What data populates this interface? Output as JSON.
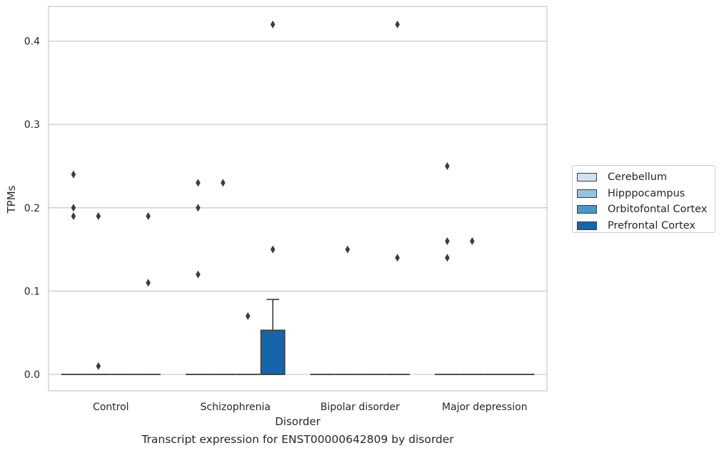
{
  "caption": "Transcript expression for ENST00000642809 by disorder",
  "chart_data": {
    "type": "box",
    "xlabel": "Disorder",
    "ylabel": "TPMs",
    "ylim": [
      -0.02,
      0.44
    ],
    "yticks": [
      0.0,
      0.1,
      0.2,
      0.3,
      0.4
    ],
    "ytick_labels": [
      "0.0",
      "0.1",
      "0.2",
      "0.3",
      "0.4"
    ],
    "grid": "horizontal",
    "legend_position": "right",
    "categories": [
      "Control",
      "Schizophrenia",
      "Bipolar disorder",
      "Major depression"
    ],
    "series": [
      {
        "name": "Cerebellum",
        "color": "#d0e1f2",
        "boxes": [
          {
            "q1": 0,
            "median": 0,
            "q3": 0,
            "whisker_low": 0,
            "whisker_high": 0,
            "outliers": [
              0.24,
              0.2,
              0.19
            ]
          },
          {
            "q1": 0,
            "median": 0,
            "q3": 0,
            "whisker_low": 0,
            "whisker_high": 0,
            "outliers": [
              0.23,
              0.2,
              0.12
            ]
          },
          {
            "q1": 0,
            "median": 0,
            "q3": 0,
            "whisker_low": 0,
            "whisker_high": 0,
            "outliers": []
          },
          {
            "q1": 0,
            "median": 0,
            "q3": 0,
            "whisker_low": 0,
            "whisker_high": 0,
            "outliers": [
              0.25,
              0.16,
              0.14
            ]
          }
        ]
      },
      {
        "name": "Hipppocampus",
        "color": "#94c4df",
        "boxes": [
          {
            "q1": 0,
            "median": 0,
            "q3": 0,
            "whisker_low": 0,
            "whisker_high": 0,
            "outliers": [
              0.19,
              0.01
            ]
          },
          {
            "q1": 0,
            "median": 0,
            "q3": 0,
            "whisker_low": 0,
            "whisker_high": 0,
            "outliers": [
              0.23
            ]
          },
          {
            "q1": 0,
            "median": 0,
            "q3": 0,
            "whisker_low": 0,
            "whisker_high": 0,
            "outliers": [
              0.15
            ]
          },
          {
            "q1": 0,
            "median": 0,
            "q3": 0,
            "whisker_low": 0,
            "whisker_high": 0,
            "outliers": [
              0.16
            ]
          }
        ]
      },
      {
        "name": "Orbitofontal Cortex",
        "color": "#4a98c9",
        "boxes": [
          {
            "q1": 0,
            "median": 0,
            "q3": 0,
            "whisker_low": 0,
            "whisker_high": 0,
            "outliers": []
          },
          {
            "q1": 0,
            "median": 0,
            "q3": 0,
            "whisker_low": 0,
            "whisker_high": 0,
            "outliers": [
              0.07
            ]
          },
          {
            "q1": 0,
            "median": 0,
            "q3": 0,
            "whisker_low": 0,
            "whisker_high": 0,
            "outliers": []
          },
          {
            "q1": 0,
            "median": 0,
            "q3": 0,
            "whisker_low": 0,
            "whisker_high": 0,
            "outliers": []
          }
        ]
      },
      {
        "name": "Prefrontal Cortex",
        "color": "#1764ab",
        "boxes": [
          {
            "q1": 0,
            "median": 0,
            "q3": 0,
            "whisker_low": 0,
            "whisker_high": 0,
            "outliers": [
              0.19,
              0.11
            ]
          },
          {
            "q1": 0,
            "median": 0,
            "q3": 0.053,
            "whisker_low": 0,
            "whisker_high": 0.09,
            "outliers": [
              0.42,
              0.15
            ]
          },
          {
            "q1": 0,
            "median": 0,
            "q3": 0,
            "whisker_low": 0,
            "whisker_high": 0,
            "outliers": [
              0.42,
              0.14
            ]
          },
          {
            "q1": 0,
            "median": 0,
            "q3": 0,
            "whisker_low": 0,
            "whisker_high": 0,
            "outliers": []
          }
        ]
      }
    ]
  }
}
